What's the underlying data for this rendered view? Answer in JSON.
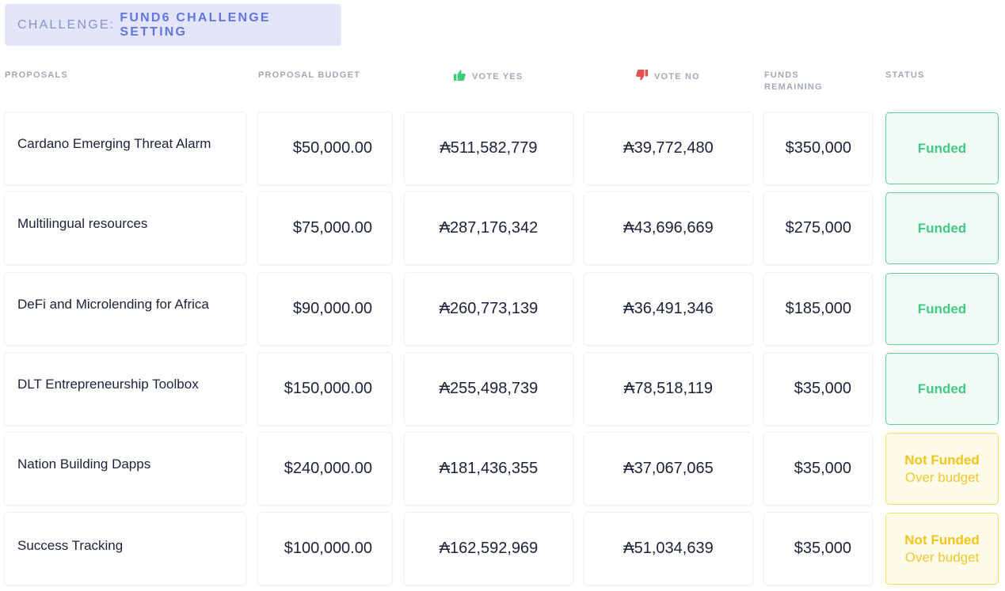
{
  "challenge": {
    "prefix": "CHALLENGE:",
    "name": "FUND6 CHALLENGE SETTING"
  },
  "headers": {
    "proposals": "PROPOSALS",
    "budget": "PROPOSAL BUDGET",
    "vote_yes": "VOTE YES",
    "vote_no": "VOTE NO",
    "funds_remaining_1": "FUNDS",
    "funds_remaining_2": "REMAINING",
    "status": "STATUS"
  },
  "icons": {
    "vote_yes": "thumbs-up-icon",
    "vote_no": "thumbs-down-icon"
  },
  "colors": {
    "yes": "#3fca7f",
    "no": "#e8504f",
    "funded": "#44c985",
    "not_funded": "#f2c41b"
  },
  "rows": [
    {
      "name": "Cardano Emerging Threat Alarm",
      "budget": "$50,000.00",
      "yes": "₳511,582,779",
      "no": "₳39,772,480",
      "remaining": "$350,000",
      "status": "Funded",
      "status_sub": ""
    },
    {
      "name": "Multilingual resources",
      "budget": "$75,000.00",
      "yes": "₳287,176,342",
      "no": "₳43,696,669",
      "remaining": "$275,000",
      "status": "Funded",
      "status_sub": ""
    },
    {
      "name": "DeFi and Microlending for Africa",
      "budget": "$90,000.00",
      "yes": "₳260,773,139",
      "no": "₳36,491,346",
      "remaining": "$185,000",
      "status": "Funded",
      "status_sub": ""
    },
    {
      "name": "DLT Entrepreneurship Toolbox",
      "budget": "$150,000.00",
      "yes": "₳255,498,739",
      "no": "₳78,518,119",
      "remaining": "$35,000",
      "status": "Funded",
      "status_sub": ""
    },
    {
      "name": "Nation Building Dapps",
      "budget": "$240,000.00",
      "yes": "₳181,436,355",
      "no": "₳37,067,065",
      "remaining": "$35,000",
      "status": "Not Funded",
      "status_sub": "Over budget"
    },
    {
      "name": "Success Tracking",
      "budget": "$100,000.00",
      "yes": "₳162,592,969",
      "no": "₳51,034,639",
      "remaining": "$35,000",
      "status": "Not Funded",
      "status_sub": "Over budget"
    }
  ]
}
